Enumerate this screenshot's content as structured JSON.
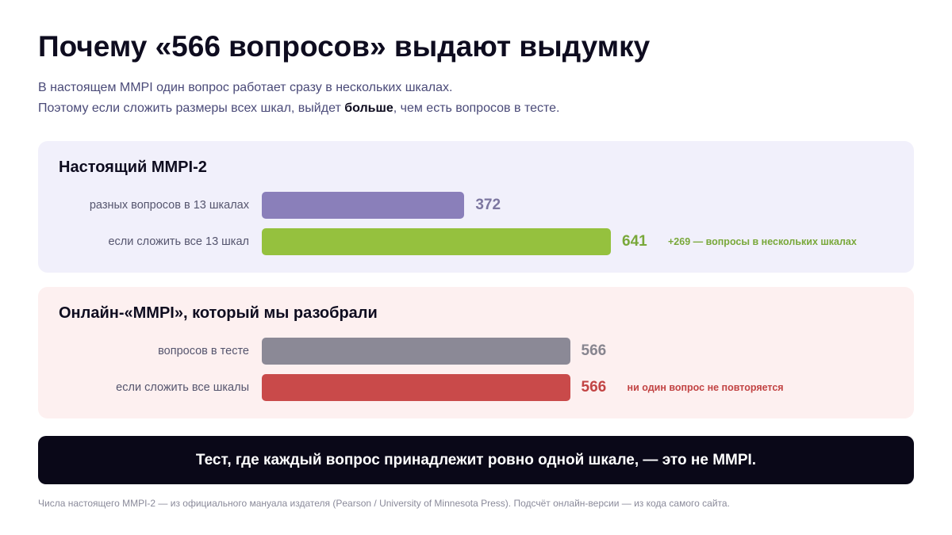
{
  "title": "Почему «566 вопросов» выдают выдумку",
  "subtitle": {
    "line1": "В настоящем MMPI один вопрос работает сразу в нескольких шкалах.",
    "line2_before": "Поэтому если сложить размеры всех шкал, выйдет ",
    "line2_bold": "больше",
    "line2_after": ", чем есть вопросов в тесте."
  },
  "chart_data": [
    {
      "type": "bar",
      "orientation": "horizontal",
      "title": "Настоящий MMPI-2",
      "categories": [
        "разных вопросов в 13 шкалах",
        "если сложить все 13 шкал"
      ],
      "values": [
        372,
        641
      ],
      "value_labels": [
        "372",
        "641"
      ],
      "colors": [
        "#8a7fba",
        "#95c13e"
      ],
      "value_colors": [
        "#7c76a0",
        "#79a83a"
      ],
      "annotations": [
        "",
        "+269 — вопросы в нескольких шкалах"
      ],
      "annotation_colors": [
        "",
        "#79a83a"
      ],
      "xlim": [
        0,
        641
      ]
    },
    {
      "type": "bar",
      "orientation": "horizontal",
      "title": "Онлайн-«MMPI», который мы разобрали",
      "categories": [
        "вопросов в тесте",
        "если сложить все шкалы"
      ],
      "values": [
        566,
        566
      ],
      "value_labels": [
        "566",
        "566"
      ],
      "colors": [
        "#8b8996",
        "#c94a4a"
      ],
      "value_colors": [
        "#87858f",
        "#c24444"
      ],
      "annotations": [
        "",
        "ни один вопрос не повторяется"
      ],
      "annotation_colors": [
        "",
        "#c24444"
      ],
      "xlim": [
        0,
        641
      ]
    }
  ],
  "banner": "Тест, где каждый вопрос принадлежит ровно одной шкале, — это не MMPI.",
  "footnote": "Числа настоящего MMPI-2 — из официального мануала издателя (Pearson / University of Minnesota Press). Подсчёт онлайн-версии — из кода самого сайта."
}
